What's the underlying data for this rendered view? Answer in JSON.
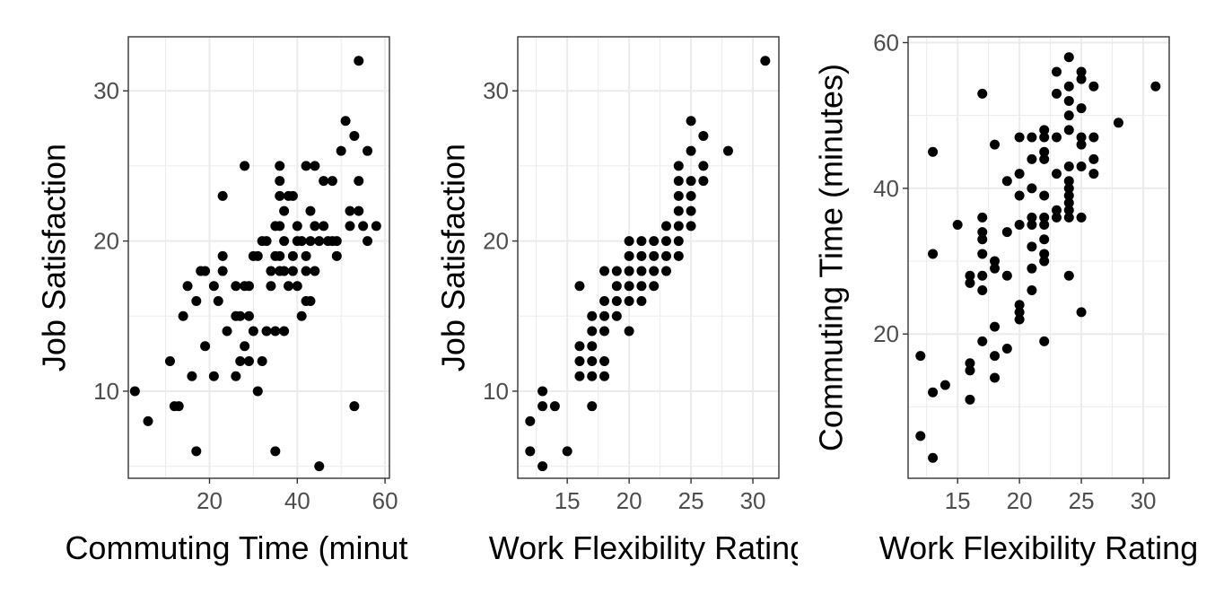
{
  "chart_data": [
    {
      "type": "scatter",
      "xlabel": "Commuting Time (minutes)",
      "ylabel": "Job Satisfaction",
      "xlim": [
        1.5,
        61
      ],
      "ylim": [
        4.2,
        33.6
      ],
      "xticks": [
        20,
        40,
        60
      ],
      "yticks": [
        10,
        20,
        30
      ],
      "xtick_labels": [
        "20",
        "40",
        "60"
      ],
      "ytick_labels": [
        "10",
        "20",
        "30"
      ],
      "grid": true,
      "point_color": "#000000",
      "points": [
        [
          3,
          10
        ],
        [
          6,
          8
        ],
        [
          11,
          12
        ],
        [
          12,
          9
        ],
        [
          13,
          9
        ],
        [
          14,
          15
        ],
        [
          15,
          17
        ],
        [
          16,
          11
        ],
        [
          17,
          16
        ],
        [
          17,
          6
        ],
        [
          18,
          18
        ],
        [
          19,
          18
        ],
        [
          19,
          13
        ],
        [
          21,
          11
        ],
        [
          21,
          17
        ],
        [
          22,
          16
        ],
        [
          23,
          23
        ],
        [
          23,
          18
        ],
        [
          23,
          19
        ],
        [
          24,
          14
        ],
        [
          26,
          17
        ],
        [
          26,
          15
        ],
        [
          26,
          11
        ],
        [
          27,
          15
        ],
        [
          27,
          12
        ],
        [
          28,
          25
        ],
        [
          28,
          17
        ],
        [
          28,
          13
        ],
        [
          29,
          17
        ],
        [
          29,
          15
        ],
        [
          29,
          12
        ],
        [
          30,
          14
        ],
        [
          30,
          19
        ],
        [
          31,
          19
        ],
        [
          31,
          10
        ],
        [
          32,
          20
        ],
        [
          32,
          12
        ],
        [
          33,
          20
        ],
        [
          33,
          14
        ],
        [
          34,
          17
        ],
        [
          34,
          18
        ],
        [
          35,
          19
        ],
        [
          35,
          21
        ],
        [
          35,
          14
        ],
        [
          35,
          6
        ],
        [
          36,
          25
        ],
        [
          36,
          24
        ],
        [
          36,
          23
        ],
        [
          36,
          21
        ],
        [
          36,
          19
        ],
        [
          36,
          18
        ],
        [
          37,
          22
        ],
        [
          37,
          20
        ],
        [
          37,
          18
        ],
        [
          37,
          14
        ],
        [
          38,
          23
        ],
        [
          38,
          17
        ],
        [
          39,
          23
        ],
        [
          39,
          19
        ],
        [
          39,
          18
        ],
        [
          40,
          21
        ],
        [
          40,
          20
        ],
        [
          40,
          17
        ],
        [
          41,
          15
        ],
        [
          41,
          20
        ],
        [
          42,
          25
        ],
        [
          42,
          19
        ],
        [
          42,
          18
        ],
        [
          42,
          16
        ],
        [
          43,
          22
        ],
        [
          43,
          20
        ],
        [
          43,
          16
        ],
        [
          44,
          25
        ],
        [
          44,
          21
        ],
        [
          44,
          18
        ],
        [
          45,
          5
        ],
        [
          45,
          20
        ],
        [
          46,
          24
        ],
        [
          46,
          21
        ],
        [
          47,
          20
        ],
        [
          48,
          24
        ],
        [
          48,
          20
        ],
        [
          49,
          19
        ],
        [
          49,
          20
        ],
        [
          50,
          26
        ],
        [
          51,
          28
        ],
        [
          52,
          22
        ],
        [
          52,
          21
        ],
        [
          53,
          9
        ],
        [
          53,
          27
        ],
        [
          54,
          32
        ],
        [
          54,
          24
        ],
        [
          54,
          22
        ],
        [
          55,
          21
        ],
        [
          56,
          20
        ],
        [
          56,
          26
        ],
        [
          58,
          21
        ]
      ]
    },
    {
      "type": "scatter",
      "xlabel": "Work Flexibility Rating",
      "ylabel": "Job Satisfaction",
      "xlim": [
        11,
        32.1
      ],
      "ylim": [
        4.2,
        33.6
      ],
      "xticks": [
        15,
        20,
        25,
        30
      ],
      "yticks": [
        10,
        20,
        30
      ],
      "xtick_labels": [
        "15",
        "20",
        "25",
        "30"
      ],
      "ytick_labels": [
        "10",
        "20",
        "30"
      ],
      "grid": true,
      "point_color": "#000000",
      "points": [
        [
          12,
          8
        ],
        [
          12,
          6
        ],
        [
          13,
          10
        ],
        [
          13,
          9
        ],
        [
          13,
          5
        ],
        [
          14,
          9
        ],
        [
          15,
          6
        ],
        [
          16,
          17
        ],
        [
          16,
          13
        ],
        [
          16,
          12
        ],
        [
          16,
          11
        ],
        [
          17,
          15
        ],
        [
          17,
          14
        ],
        [
          17,
          13
        ],
        [
          17,
          12
        ],
        [
          17,
          11
        ],
        [
          17,
          9
        ],
        [
          18,
          18
        ],
        [
          18,
          16
        ],
        [
          18,
          15
        ],
        [
          18,
          14
        ],
        [
          18,
          12
        ],
        [
          18,
          11
        ],
        [
          19,
          17
        ],
        [
          19,
          16
        ],
        [
          19,
          15
        ],
        [
          19,
          18
        ],
        [
          20,
          20
        ],
        [
          20,
          19
        ],
        [
          20,
          18
        ],
        [
          20,
          17
        ],
        [
          20,
          16
        ],
        [
          20,
          14
        ],
        [
          21,
          20
        ],
        [
          21,
          19
        ],
        [
          21,
          18
        ],
        [
          21,
          17
        ],
        [
          21,
          16
        ],
        [
          22,
          20
        ],
        [
          22,
          19
        ],
        [
          22,
          18
        ],
        [
          22,
          17
        ],
        [
          23,
          21
        ],
        [
          23,
          20
        ],
        [
          23,
          19
        ],
        [
          23,
          18
        ],
        [
          24,
          25
        ],
        [
          24,
          24
        ],
        [
          24,
          23
        ],
        [
          24,
          22
        ],
        [
          24,
          21
        ],
        [
          24,
          20
        ],
        [
          24,
          19
        ],
        [
          25,
          28
        ],
        [
          25,
          26
        ],
        [
          25,
          24
        ],
        [
          25,
          23
        ],
        [
          25,
          22
        ],
        [
          25,
          21
        ],
        [
          26,
          27
        ],
        [
          26,
          25
        ],
        [
          26,
          24
        ],
        [
          28,
          26
        ],
        [
          31,
          32
        ]
      ]
    },
    {
      "type": "scatter",
      "xlabel": "Work Flexibility Rating",
      "ylabel": "Commuting Time (minutes)",
      "xlim": [
        11,
        32.1
      ],
      "ylim": [
        0.2,
        60.8
      ],
      "xticks": [
        15,
        20,
        25,
        30
      ],
      "yticks": [
        20,
        40,
        60
      ],
      "xtick_labels": [
        "15",
        "20",
        "25",
        "30"
      ],
      "ytick_labels": [
        "20",
        "40",
        "60"
      ],
      "grid": true,
      "point_color": "#000000",
      "points": [
        [
          12,
          17
        ],
        [
          12,
          6
        ],
        [
          13,
          45
        ],
        [
          13,
          31
        ],
        [
          13,
          12
        ],
        [
          13,
          3
        ],
        [
          14,
          13
        ],
        [
          15,
          35
        ],
        [
          16,
          28
        ],
        [
          16,
          27
        ],
        [
          16,
          16
        ],
        [
          16,
          15
        ],
        [
          16,
          11
        ],
        [
          17,
          53
        ],
        [
          17,
          36
        ],
        [
          17,
          34
        ],
        [
          17,
          33
        ],
        [
          17,
          31
        ],
        [
          17,
          28
        ],
        [
          17,
          26
        ],
        [
          17,
          19
        ],
        [
          18,
          46
        ],
        [
          18,
          30
        ],
        [
          18,
          29
        ],
        [
          18,
          21
        ],
        [
          18,
          17
        ],
        [
          18,
          14
        ],
        [
          19,
          41
        ],
        [
          19,
          34
        ],
        [
          19,
          28
        ],
        [
          19,
          18
        ],
        [
          20,
          47
        ],
        [
          20,
          42
        ],
        [
          20,
          39
        ],
        [
          20,
          35
        ],
        [
          20,
          24
        ],
        [
          20,
          23
        ],
        [
          20,
          22
        ],
        [
          21,
          47
        ],
        [
          21,
          44
        ],
        [
          21,
          40
        ],
        [
          21,
          36
        ],
        [
          21,
          35
        ],
        [
          21,
          32
        ],
        [
          21,
          29
        ],
        [
          21,
          26
        ],
        [
          22,
          48
        ],
        [
          22,
          47
        ],
        [
          22,
          45
        ],
        [
          22,
          44
        ],
        [
          22,
          39
        ],
        [
          22,
          36
        ],
        [
          22,
          35
        ],
        [
          22,
          33
        ],
        [
          22,
          31
        ],
        [
          22,
          30
        ],
        [
          22,
          19
        ],
        [
          23,
          56
        ],
        [
          23,
          53
        ],
        [
          23,
          47
        ],
        [
          23,
          42
        ],
        [
          23,
          37
        ],
        [
          23,
          36
        ],
        [
          24,
          58
        ],
        [
          24,
          54
        ],
        [
          24,
          52
        ],
        [
          24,
          50
        ],
        [
          24,
          48
        ],
        [
          24,
          43
        ],
        [
          24,
          41
        ],
        [
          24,
          40
        ],
        [
          24,
          39
        ],
        [
          24,
          38
        ],
        [
          24,
          37
        ],
        [
          24,
          36
        ],
        [
          24,
          28
        ],
        [
          25,
          56
        ],
        [
          25,
          55
        ],
        [
          25,
          51
        ],
        [
          25,
          47
        ],
        [
          25,
          46
        ],
        [
          25,
          43
        ],
        [
          25,
          36
        ],
        [
          25,
          23
        ],
        [
          26,
          54
        ],
        [
          26,
          47
        ],
        [
          26,
          44
        ],
        [
          26,
          42
        ],
        [
          28,
          49
        ],
        [
          31,
          54
        ]
      ]
    }
  ]
}
